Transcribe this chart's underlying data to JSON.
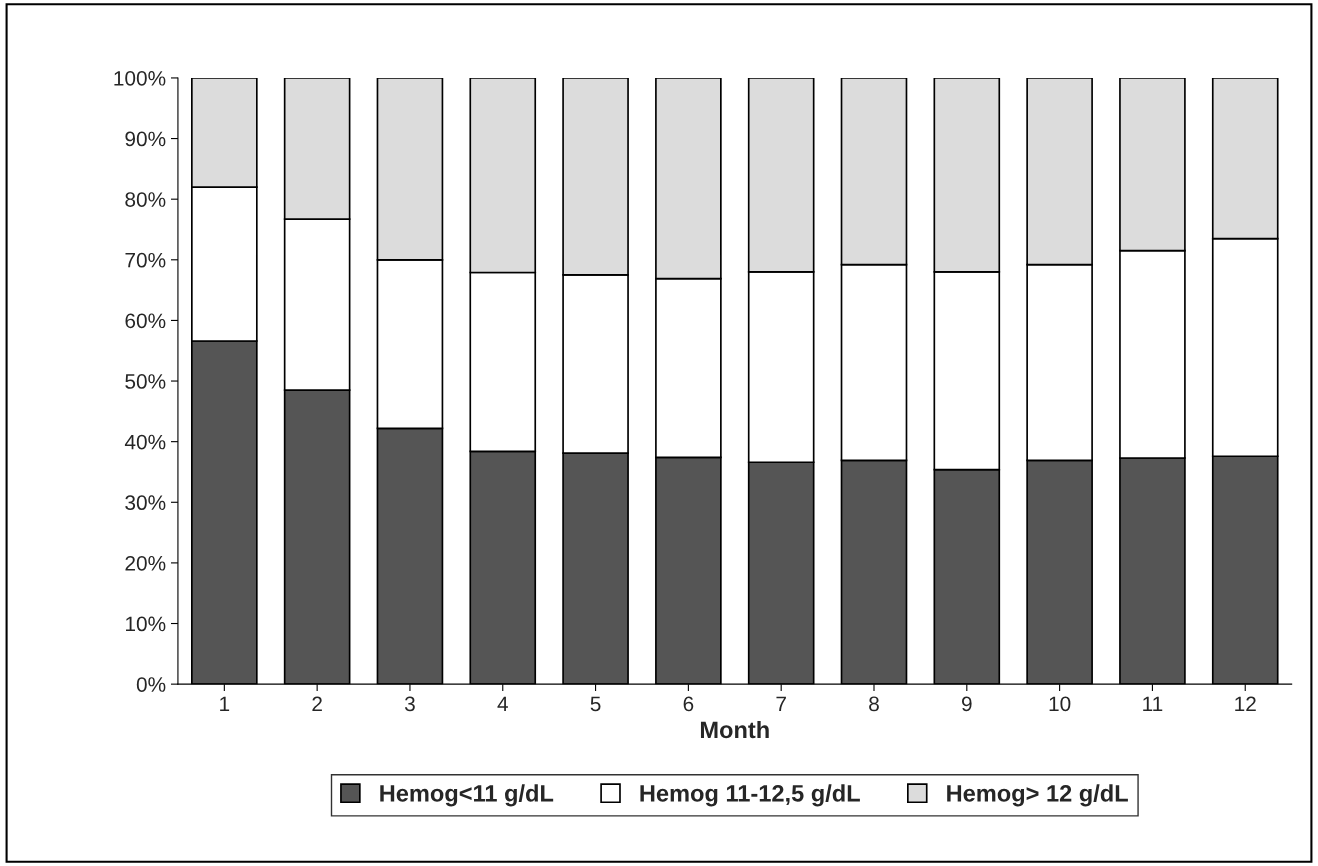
{
  "chart_data": {
    "type": "bar",
    "stacked": true,
    "xlabel": "Month",
    "categories": [
      "1",
      "2",
      "3",
      "4",
      "5",
      "6",
      "7",
      "8",
      "9",
      "10",
      "11",
      "12"
    ],
    "series": [
      {
        "name": "Hemog<11 g/dL",
        "color": "#555555",
        "values": [
          56.6,
          48.5,
          42.2,
          38.4,
          38.1,
          37.4,
          36.6,
          36.9,
          35.4,
          36.9,
          37.3,
          37.6
        ]
      },
      {
        "name": "Hemog 11-12,5 g/dL",
        "color": "#ffffff",
        "values": [
          25.4,
          28.2,
          27.8,
          29.5,
          29.4,
          29.5,
          31.4,
          32.3,
          32.6,
          32.3,
          34.2,
          35.9
        ]
      },
      {
        "name": "Hemog> 12 g/dL",
        "color": "#dcdcdc",
        "values": [
          18.0,
          23.3,
          30.0,
          32.1,
          32.5,
          33.1,
          32.0,
          30.8,
          32.0,
          30.8,
          28.5,
          26.5
        ]
      }
    ],
    "ylim": [
      0,
      100
    ],
    "yticks": [
      {
        "value": 0,
        "label": "0%"
      },
      {
        "value": 10,
        "label": "10%"
      },
      {
        "value": 20,
        "label": "20%"
      },
      {
        "value": 30,
        "label": "30%"
      },
      {
        "value": 40,
        "label": "40%"
      },
      {
        "value": 50,
        "label": "50%"
      },
      {
        "value": 60,
        "label": "60%"
      },
      {
        "value": 70,
        "label": "70%"
      },
      {
        "value": 80,
        "label": "80%"
      },
      {
        "value": 90,
        "label": "90%"
      },
      {
        "value": 100,
        "label": "100%"
      }
    ],
    "grid": false,
    "legend": "bottom"
  }
}
